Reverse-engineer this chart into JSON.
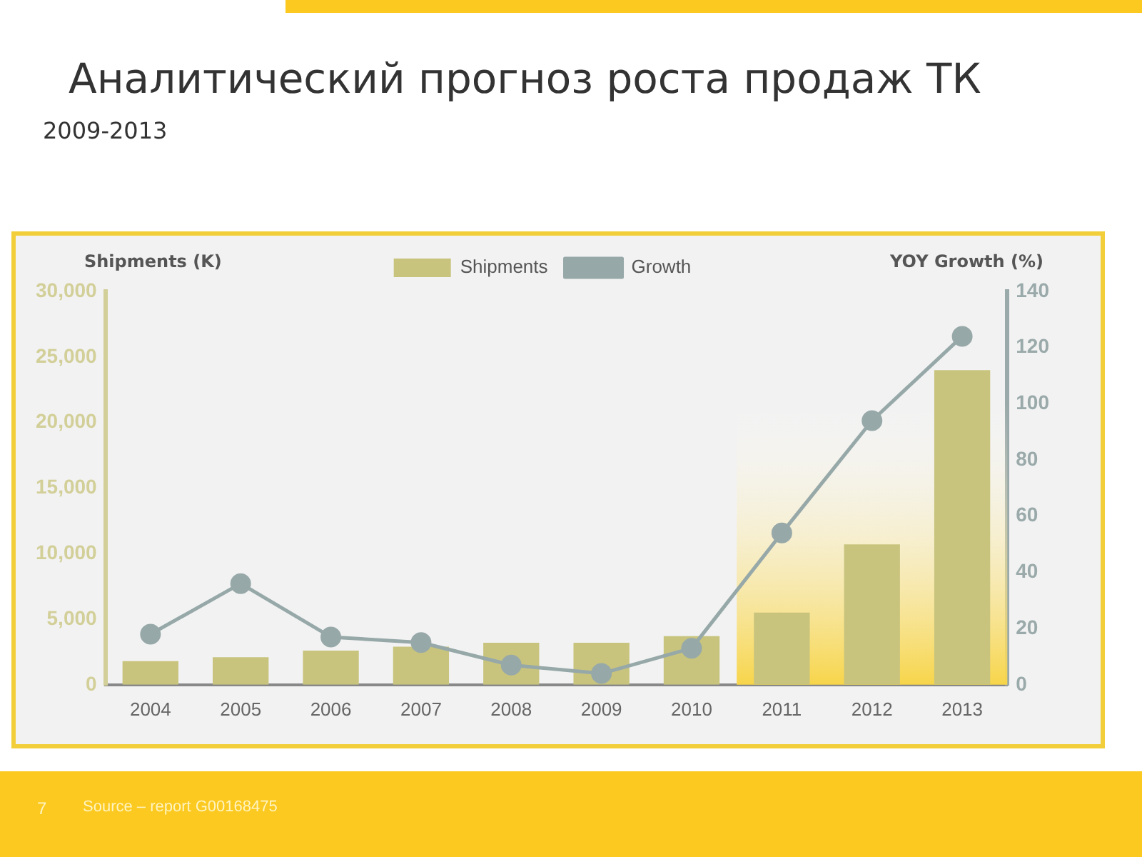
{
  "chart_data": {
    "type": "bar",
    "title": "Аналитический прогноз роста продаж ТК",
    "subtitle": "2009-2013",
    "ylabel": "Shipments (K)",
    "y2label": "YOY Growth (%)",
    "categories": [
      "2004",
      "2005",
      "2006",
      "2007",
      "2008",
      "2009",
      "2010",
      "2011",
      "2012",
      "2013"
    ],
    "series": [
      {
        "name": "Shipments",
        "color": "#c8c47e",
        "values": [
          1800,
          2100,
          2600,
          2900,
          3200,
          3200,
          3700,
          5500,
          10700,
          24000
        ]
      },
      {
        "name": "Growth",
        "type": "line",
        "axis": "y2",
        "color": "#97a8a8",
        "marker": "circle",
        "values": [
          18,
          36,
          17,
          15,
          7,
          4,
          13,
          54,
          94,
          124
        ]
      }
    ],
    "ylim": [
      0,
      30000
    ],
    "yticks": [
      {
        "value": 0,
        "label": "0"
      },
      {
        "value": 5000,
        "label": "5,000"
      },
      {
        "value": 10000,
        "label": "10,000"
      },
      {
        "value": 15000,
        "label": "15,000"
      },
      {
        "value": 20000,
        "label": "20,000"
      },
      {
        "value": 25000,
        "label": "25,000"
      },
      {
        "value": 30000,
        "label": "30,000"
      }
    ],
    "y2lim": [
      0,
      140
    ],
    "y2ticks": [
      0,
      20,
      40,
      60,
      80,
      100,
      120,
      140
    ],
    "bands": [
      {
        "axis": "x",
        "from": "2011",
        "to": "2013",
        "color": "#f7d54a"
      }
    ],
    "grid": false,
    "legend": "top",
    "annotations": [
      "7",
      "Source – report G00168475"
    ]
  }
}
